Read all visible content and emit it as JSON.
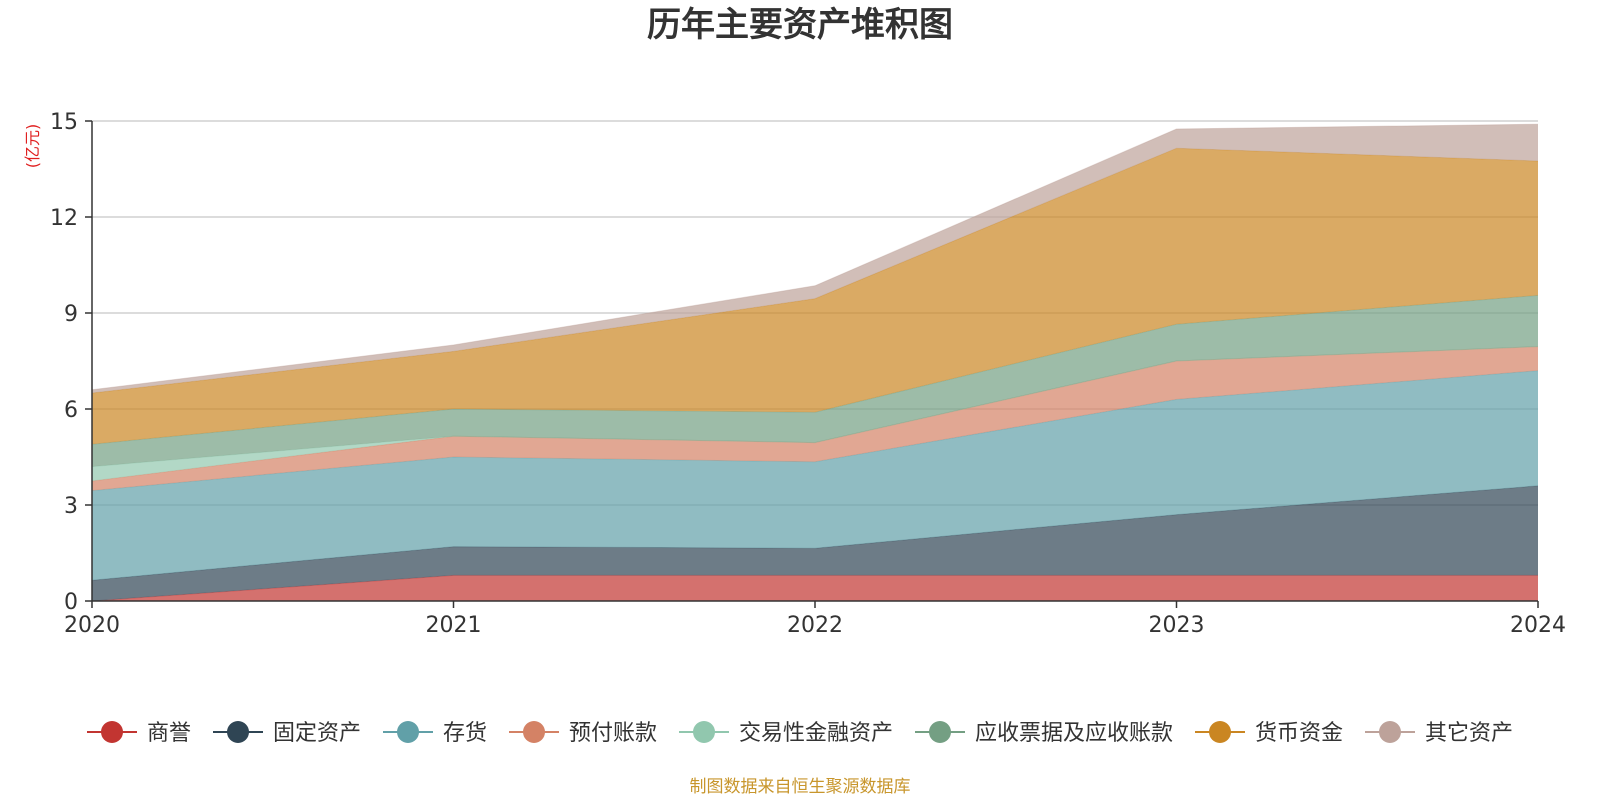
{
  "chart_data": {
    "type": "area",
    "stacked": true,
    "title": "历年主要资产堆积图",
    "ylabel": "(亿元)",
    "x": [
      "2020",
      "2021",
      "2022",
      "2023",
      "2024"
    ],
    "ylim": [
      0,
      15
    ],
    "yticks": [
      "0",
      "3",
      "6",
      "9",
      "12",
      "15"
    ],
    "grid": true,
    "legend_position": "bottom",
    "series": [
      {
        "name": "商誉",
        "color": "#c23531",
        "values": [
          0.0,
          0.8,
          0.8,
          0.8,
          0.8
        ]
      },
      {
        "name": "固定资产",
        "color": "#2f4554",
        "values": [
          0.65,
          0.9,
          0.85,
          1.9,
          2.8
        ]
      },
      {
        "name": "存货",
        "color": "#61a0a8",
        "values": [
          2.8,
          2.8,
          2.7,
          3.6,
          3.6
        ]
      },
      {
        "name": "预付账款",
        "color": "#d48265",
        "values": [
          0.3,
          0.65,
          0.6,
          1.2,
          0.75
        ]
      },
      {
        "name": "交易性金融资产",
        "color": "#91c7ae",
        "values": [
          0.45,
          0.0,
          0.0,
          0.0,
          0.0
        ]
      },
      {
        "name": "应收票据及应收账款",
        "color": "#749f83",
        "values": [
          0.7,
          0.85,
          0.95,
          1.15,
          1.6
        ]
      },
      {
        "name": "货币资金",
        "color": "#ca8622",
        "values": [
          1.6,
          1.8,
          3.55,
          5.5,
          4.2
        ]
      },
      {
        "name": "其它资产",
        "color": "#bda29a",
        "values": [
          0.1,
          0.2,
          0.4,
          0.6,
          1.15
        ]
      }
    ]
  },
  "footer": "制图数据来自恒生聚源数据库"
}
